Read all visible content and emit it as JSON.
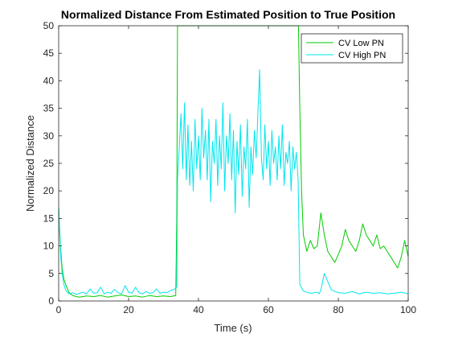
{
  "chart_data": {
    "type": "line",
    "title": "Normalized Distance From Estimated Position to True Position",
    "xlabel": "Time (s)",
    "ylabel": "Normalized Distance",
    "xlim": [
      0,
      100
    ],
    "ylim": [
      0,
      50
    ],
    "xticks": [
      "0",
      "20",
      "40",
      "60",
      "80",
      "100"
    ],
    "yticks": [
      "0",
      "5",
      "10",
      "15",
      "20",
      "25",
      "30",
      "35",
      "40",
      "45",
      "50"
    ],
    "legend_position": "top-right",
    "grid": false,
    "series": [
      {
        "name": "CV Low PN",
        "color": "#00cc00",
        "x": [
          0,
          0.5,
          1,
          1.5,
          2,
          3,
          4,
          5,
          6,
          8,
          10,
          12,
          14,
          16,
          18,
          20,
          22,
          24,
          26,
          28,
          30,
          32,
          33.5,
          33.8,
          34,
          34.5,
          35,
          40,
          45,
          50,
          55,
          60,
          65,
          67,
          68,
          68.3,
          68.6,
          69,
          69.5,
          70,
          71,
          72,
          73,
          74,
          75,
          76,
          77,
          78,
          79,
          80,
          81,
          82,
          83,
          84,
          85,
          86,
          87,
          88,
          89,
          90,
          91,
          92,
          93,
          94,
          95,
          96,
          97,
          98,
          99,
          100
        ],
        "y": [
          17,
          10,
          6,
          4,
          3,
          1.5,
          1,
          0.8,
          0.7,
          0.9,
          0.8,
          1.0,
          0.7,
          0.9,
          1.1,
          0.8,
          0.9,
          0.7,
          1.0,
          0.8,
          0.9,
          0.8,
          1.0,
          15,
          50,
          50,
          50,
          50,
          50,
          50,
          50,
          50,
          50,
          50,
          50,
          50,
          50,
          35,
          20,
          12,
          9,
          11,
          9.5,
          10,
          16,
          12,
          9,
          8,
          7,
          8.5,
          10,
          13,
          11,
          10,
          9,
          11,
          14,
          12,
          11,
          10,
          12,
          9.5,
          10,
          9,
          8,
          7,
          6,
          8,
          11,
          8
        ]
      },
      {
        "name": "CV High PN",
        "color": "#00e5ee",
        "x": [
          0,
          0.3,
          0.6,
          1,
          1.5,
          2,
          2.5,
          3,
          4,
          5,
          6,
          7,
          8,
          9,
          10,
          11,
          12,
          13,
          14,
          15,
          16,
          17,
          18,
          19,
          20,
          21,
          22,
          23,
          24,
          25,
          26,
          27,
          28,
          29,
          30,
          31,
          32,
          33,
          33.8,
          34,
          34.5,
          35,
          35.5,
          36,
          36.5,
          37,
          37.5,
          38,
          38.5,
          39,
          39.5,
          40,
          40.5,
          41,
          41.5,
          42,
          42.5,
          43,
          43.5,
          44,
          44.5,
          45,
          45.5,
          46,
          46.5,
          47,
          47.5,
          48,
          48.5,
          49,
          49.5,
          50,
          50.5,
          51,
          51.5,
          52,
          52.5,
          53,
          53.5,
          54,
          54.5,
          55,
          55.5,
          56,
          56.5,
          57,
          57.5,
          58,
          58.5,
          59,
          59.5,
          60,
          60.5,
          61,
          61.5,
          62,
          62.5,
          63,
          63.5,
          64,
          64.5,
          65,
          65.5,
          66,
          66.5,
          67,
          67.5,
          68,
          68.5,
          69,
          70,
          72,
          74,
          74.5,
          75,
          76,
          78,
          80,
          82,
          84,
          86,
          88,
          90,
          92,
          94,
          96,
          98,
          100
        ],
        "y": [
          17,
          12,
          8,
          5,
          3,
          2,
          1.6,
          1.3,
          1.5,
          1.2,
          1.4,
          1.6,
          1.3,
          2.2,
          1.4,
          1.5,
          2.5,
          1.3,
          1.6,
          1.4,
          2.1,
          1.5,
          1.3,
          2.8,
          1.6,
          1.4,
          2.5,
          1.5,
          1.3,
          1.7,
          1.4,
          1.5,
          2.2,
          1.4,
          1.6,
          1.5,
          1.9,
          2.1,
          2.5,
          22,
          28,
          34,
          24,
          36,
          22,
          32,
          21,
          29,
          20,
          33,
          24,
          30,
          22,
          35,
          26,
          31,
          22,
          33,
          18,
          29,
          25,
          33,
          21,
          30,
          24,
          36,
          20,
          30,
          25,
          34,
          22,
          31,
          16,
          29,
          23,
          32,
          19,
          28,
          24,
          33,
          17,
          28,
          23,
          31,
          26,
          34,
          42,
          26,
          22,
          32,
          24,
          29,
          21,
          31,
          25,
          28,
          22,
          30,
          24,
          32,
          21,
          27,
          25,
          29,
          20,
          28,
          24,
          27,
          22,
          3,
          1.8,
          1.4,
          1.6,
          1.3,
          2.0,
          5,
          2.0,
          1.5,
          1.4,
          1.7,
          1.3,
          1.6,
          1.4,
          1.5,
          1.3,
          1.4,
          1.6,
          1.3
        ]
      }
    ]
  }
}
